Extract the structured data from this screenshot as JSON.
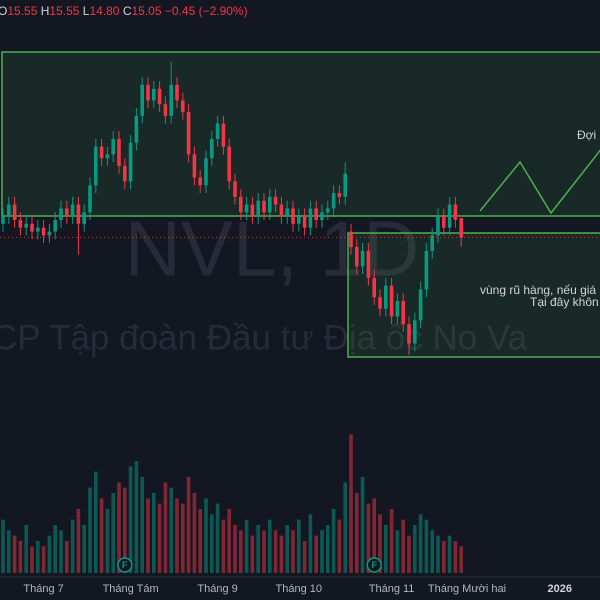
{
  "chart_data": {
    "type": "candlestick",
    "header": {
      "open_key": "O",
      "open": "15.55",
      "high_key": "H",
      "high": "15.55",
      "low_key": "L",
      "low": "14.80",
      "close_key": "C",
      "close": "15.05",
      "change": "−0.45 (−2.90%)"
    },
    "watermark": "NVL, 1D",
    "watermark_subtitle": "CP Tập đoàn Đầu tư Địa ốc No Va",
    "annotations": [
      "Đợi c",
      "vùng rũ hàng, nếu giá",
      "Tại đây khôn"
    ],
    "up_color": "#089981",
    "down_color": "#f23645",
    "ylim": [
      9.8,
      21.2
    ],
    "vlim": [
      0,
      30
    ],
    "categories": [
      null,
      null,
      null,
      null,
      null,
      null,
      null,
      "Tháng 7",
      null,
      null,
      null,
      null,
      null,
      null,
      null,
      null,
      null,
      null,
      null,
      null,
      null,
      null,
      "Tháng Tám",
      null,
      null,
      null,
      null,
      null,
      null,
      null,
      null,
      null,
      null,
      null,
      null,
      null,
      null,
      "Tháng 9",
      null,
      null,
      null,
      null,
      null,
      null,
      null,
      null,
      null,
      null,
      null,
      null,
      null,
      "Tháng 10",
      null,
      null,
      null,
      null,
      null,
      null,
      null,
      null,
      null,
      null,
      null,
      null,
      null,
      null,
      null,
      "Tháng 11",
      null,
      null,
      null,
      null,
      null,
      null,
      null,
      null,
      null,
      null,
      null,
      null,
      "Tháng Mười hai",
      null,
      null,
      null,
      null,
      null,
      null,
      null,
      null,
      null,
      null,
      null,
      null,
      null,
      null,
      null,
      "2026",
      null,
      null,
      null,
      null,
      null,
      null,
      null
    ],
    "events": [
      null,
      null,
      null,
      null,
      null,
      null,
      null,
      null,
      null,
      null,
      null,
      null,
      null,
      null,
      null,
      null,
      null,
      null,
      null,
      null,
      null,
      "F",
      null,
      null,
      null,
      null,
      null,
      null,
      null,
      null,
      null,
      null,
      null,
      null,
      null,
      null,
      null,
      null,
      null,
      null,
      null,
      null,
      null,
      null,
      null,
      null,
      null,
      null,
      null,
      null,
      null,
      null,
      null,
      null,
      null,
      null,
      null,
      null,
      null,
      null,
      null,
      null,
      null,
      null,
      "F",
      null,
      null,
      null,
      null,
      null,
      null,
      null,
      null,
      null,
      null,
      null,
      null,
      null,
      null,
      null,
      null,
      null,
      null,
      null,
      null,
      null,
      null,
      null,
      null,
      null,
      null,
      null,
      null,
      null,
      null,
      null,
      null,
      null,
      null,
      null,
      null,
      null,
      null,
      null
    ],
    "open": [
      15.4,
      15.6,
      15.9,
      15.5,
      15.3,
      15.4,
      15.2,
      15.3,
      15.1,
      15.2,
      15.5,
      15.8,
      15.6,
      15.9,
      15.4,
      15.7,
      16.4,
      17.4,
      17.1,
      17.2,
      17.6,
      16.9,
      16.5,
      17.5,
      18.2,
      19.0,
      18.6,
      18.9,
      18.5,
      18.2,
      19.0,
      18.6,
      18.3,
      17.2,
      16.6,
      16.4,
      17.1,
      17.6,
      18.0,
      17.4,
      16.5,
      16.1,
      15.7,
      15.9,
      15.6,
      16.0,
      15.7,
      16.1,
      15.9,
      15.6,
      15.8,
      15.4,
      15.6,
      15.3,
      15.8,
      15.5,
      15.7,
      15.8,
      16.2,
      16.1,
      15.2,
      14.8,
      14.3,
      14.7,
      14.0,
      13.5,
      13.2,
      13.8,
      13.0,
      13.4,
      12.8,
      12.3,
      12.9,
      13.7,
      14.7,
      15.1,
      15.6,
      15.3,
      15.9,
      15.55,
      null,
      null,
      null,
      null,
      null,
      null,
      null,
      null,
      null,
      null,
      null,
      null,
      null,
      null,
      null,
      null,
      null,
      null,
      null,
      null,
      null,
      null,
      null,
      null
    ],
    "high": [
      15.8,
      16.1,
      16.1,
      15.7,
      15.6,
      15.6,
      15.5,
      15.5,
      15.4,
      15.7,
      16.0,
      16.0,
      16.1,
      16.1,
      15.9,
      16.6,
      17.6,
      17.6,
      17.4,
      17.8,
      17.8,
      17.1,
      17.7,
      18.4,
      19.2,
      19.2,
      19.1,
      19.1,
      18.7,
      19.6,
      19.2,
      18.8,
      18.5,
      17.4,
      16.8,
      17.3,
      17.8,
      18.2,
      18.2,
      17.6,
      16.7,
      16.3,
      16.1,
      16.1,
      16.2,
      16.2,
      16.3,
      16.3,
      16.1,
      16.0,
      16.0,
      15.8,
      15.8,
      16.0,
      16.0,
      15.9,
      16.0,
      16.4,
      16.4,
      17.0,
      15.4,
      15.0,
      14.9,
      14.9,
      14.2,
      13.7,
      14.0,
      14.0,
      13.6,
      13.6,
      13.0,
      13.1,
      13.9,
      14.9,
      15.3,
      15.8,
      15.8,
      16.1,
      16.1,
      15.55,
      null,
      null,
      null,
      null,
      null,
      null,
      null,
      null,
      null,
      null,
      null,
      null,
      null,
      null,
      null,
      null,
      null,
      null,
      null,
      null,
      null,
      null,
      null,
      null
    ],
    "low": [
      15.2,
      15.4,
      15.3,
      15.1,
      15.1,
      15.0,
      15.0,
      14.9,
      14.9,
      15.0,
      15.3,
      15.4,
      15.4,
      14.6,
      15.2,
      15.5,
      16.2,
      16.9,
      16.9,
      17.0,
      16.7,
      16.3,
      16.3,
      17.3,
      18.0,
      18.4,
      18.4,
      18.3,
      18.0,
      18.0,
      18.4,
      18.1,
      17.0,
      16.4,
      16.2,
      16.2,
      16.9,
      17.4,
      17.2,
      16.3,
      15.9,
      15.5,
      15.5,
      15.4,
      15.4,
      15.5,
      15.5,
      15.7,
      15.4,
      15.4,
      15.2,
      15.2,
      15.1,
      15.1,
      15.3,
      15.3,
      15.5,
      15.6,
      15.9,
      15.9,
      14.6,
      14.1,
      14.1,
      13.8,
      13.3,
      13.0,
      13.0,
      12.8,
      12.8,
      12.6,
      12.0,
      12.1,
      12.7,
      13.5,
      14.5,
      14.9,
      15.1,
      15.1,
      15.3,
      14.8,
      null,
      null,
      null,
      null,
      null,
      null,
      null,
      null,
      null,
      null,
      null,
      null,
      null,
      null,
      null,
      null,
      null,
      null,
      null,
      null,
      null,
      null,
      null,
      null
    ],
    "close": [
      15.6,
      15.9,
      15.5,
      15.3,
      15.4,
      15.2,
      15.3,
      15.1,
      15.2,
      15.5,
      15.8,
      15.6,
      15.9,
      15.4,
      15.7,
      16.4,
      17.4,
      17.1,
      17.2,
      17.6,
      16.9,
      16.5,
      17.5,
      18.2,
      19.0,
      18.6,
      18.9,
      18.5,
      18.2,
      19.0,
      18.6,
      18.3,
      17.2,
      16.6,
      16.4,
      17.1,
      17.6,
      18.0,
      17.4,
      16.5,
      16.1,
      15.7,
      15.9,
      15.6,
      16.0,
      15.7,
      16.1,
      15.9,
      15.6,
      15.8,
      15.4,
      15.6,
      15.3,
      15.8,
      15.5,
      15.7,
      15.8,
      16.2,
      16.1,
      16.7,
      14.8,
      14.3,
      14.7,
      14.0,
      13.5,
      13.2,
      13.8,
      13.0,
      13.4,
      12.8,
      12.3,
      12.9,
      13.7,
      14.7,
      15.1,
      15.6,
      15.3,
      15.9,
      15.5,
      15.05,
      null,
      null,
      null,
      null,
      null,
      null,
      null,
      null,
      null,
      null,
      null,
      null,
      null,
      null,
      null,
      null,
      null,
      null,
      null,
      null,
      null,
      null,
      null,
      null
    ],
    "volume": [
      10,
      8,
      7,
      6,
      9,
      5,
      6,
      5,
      7,
      9,
      8,
      6,
      10,
      12,
      9,
      16,
      19,
      14,
      12,
      15,
      17,
      16,
      20,
      21,
      18,
      14,
      15,
      13,
      17,
      16,
      14,
      13,
      18,
      15,
      12,
      14,
      11,
      13,
      10,
      12,
      9,
      8,
      10,
      7,
      9,
      8,
      10,
      8,
      7,
      9,
      8,
      10,
      6,
      11,
      7,
      8,
      9,
      12,
      10,
      17,
      26,
      15,
      18,
      13,
      14,
      11,
      9,
      12,
      8,
      10,
      7,
      9,
      11,
      10,
      8,
      7,
      6,
      7,
      6,
      5,
      null,
      null,
      null,
      null,
      null,
      null,
      null,
      null,
      null,
      null,
      null,
      null,
      null,
      null,
      null,
      null,
      null,
      null,
      null,
      null,
      null,
      null,
      null,
      null
    ]
  }
}
